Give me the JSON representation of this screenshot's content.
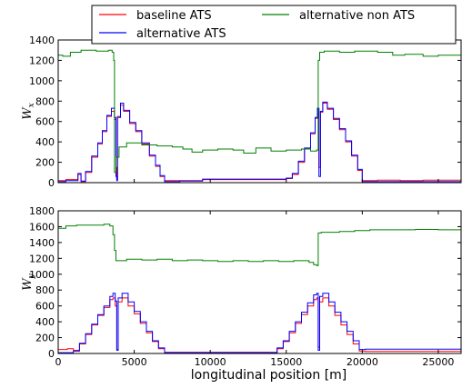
{
  "chart_data": [
    {
      "type": "line",
      "ylabel": "W_x",
      "ylabel_main": "W",
      "ylabel_sub": "x",
      "xlim": [
        0,
        26500
      ],
      "ylim": [
        0,
        1400
      ],
      "yticks": [
        0,
        200,
        400,
        600,
        800,
        1000,
        1200,
        1400
      ],
      "xticks": [
        0,
        5000,
        10000,
        15000,
        20000,
        25000
      ],
      "show_x_tick_labels": false,
      "series": [
        {
          "name": "baseline ATS",
          "color": "#ff0000",
          "stepped": true,
          "x": [
            0,
            500,
            1300,
            1500,
            1800,
            2200,
            2600,
            2900,
            3200,
            3500,
            3700,
            3800,
            3850,
            3900,
            4100,
            4300,
            4700,
            5100,
            5500,
            6000,
            6400,
            6700,
            7000,
            8000,
            9500,
            11000,
            12500,
            14000,
            14500,
            15000,
            15400,
            15800,
            16200,
            16600,
            16900,
            17050,
            17150,
            17250,
            17400,
            17700,
            18100,
            18500,
            18900,
            19300,
            19700,
            20000,
            21000,
            22500,
            24000,
            25500,
            26500
          ],
          "y": [
            20,
            30,
            80,
            10,
            100,
            250,
            380,
            500,
            650,
            700,
            620,
            150,
            30,
            650,
            760,
            700,
            580,
            500,
            380,
            260,
            160,
            60,
            20,
            20,
            30,
            30,
            30,
            30,
            30,
            40,
            80,
            200,
            330,
            480,
            630,
            720,
            150,
            690,
            780,
            720,
            620,
            520,
            400,
            260,
            120,
            20,
            25,
            20,
            25,
            25,
            25
          ]
        },
        {
          "name": "alternative ATS",
          "color": "#0000ff",
          "stepped": true,
          "x": [
            0,
            500,
            1300,
            1500,
            1800,
            2200,
            2600,
            2900,
            3200,
            3500,
            3700,
            3800,
            3850,
            3900,
            4100,
            4300,
            4700,
            5100,
            5500,
            6000,
            6400,
            6700,
            7000,
            8000,
            9500,
            11000,
            12500,
            14000,
            14500,
            15000,
            15400,
            15800,
            16200,
            16600,
            16900,
            17050,
            17150,
            17250,
            17400,
            17700,
            18100,
            18500,
            18900,
            19300,
            19700,
            20000,
            21000,
            22500,
            24000,
            25500,
            26500
          ],
          "y": [
            10,
            20,
            90,
            15,
            110,
            260,
            390,
            510,
            660,
            730,
            640,
            60,
            20,
            640,
            780,
            710,
            590,
            510,
            390,
            270,
            170,
            70,
            10,
            15,
            35,
            35,
            35,
            35,
            35,
            45,
            90,
            210,
            340,
            490,
            640,
            730,
            60,
            700,
            790,
            730,
            630,
            530,
            410,
            270,
            130,
            10,
            10,
            10,
            10,
            10,
            10
          ]
        },
        {
          "name": "alternative non ATS",
          "color": "#008000",
          "stepped": true,
          "x": [
            0,
            300,
            800,
            1500,
            2500,
            3300,
            3550,
            3650,
            3700,
            3800,
            4000,
            4500,
            5500,
            6500,
            7500,
            8200,
            8800,
            9500,
            10500,
            11500,
            12200,
            13000,
            14000,
            15000,
            16000,
            16600,
            17000,
            17100,
            17200,
            17500,
            18500,
            19500,
            21000,
            22000,
            22800,
            24000,
            25000,
            26500
          ],
          "y": [
            1250,
            1240,
            1280,
            1300,
            1290,
            1300,
            1280,
            1200,
            100,
            250,
            350,
            390,
            370,
            360,
            350,
            330,
            300,
            320,
            330,
            320,
            290,
            340,
            310,
            320,
            330,
            310,
            320,
            1200,
            1280,
            1290,
            1280,
            1290,
            1280,
            1250,
            1260,
            1240,
            1250,
            1230
          ]
        }
      ]
    },
    {
      "type": "line",
      "ylabel": "W_y",
      "ylabel_main": "W",
      "ylabel_sub": "y",
      "xlabel": "longitudinal position [m]",
      "xlim": [
        0,
        26500
      ],
      "ylim": [
        0,
        1800
      ],
      "yticks": [
        0,
        200,
        400,
        600,
        800,
        1000,
        1200,
        1400,
        1600,
        1800
      ],
      "xticks": [
        0,
        5000,
        10000,
        15000,
        20000,
        25000
      ],
      "xtick_labels": [
        "0",
        "5000",
        "10000",
        "15000",
        "20000",
        "25000"
      ],
      "show_x_tick_labels": true,
      "series": [
        {
          "name": "baseline ATS",
          "color": "#ff0000",
          "stepped": true,
          "x": [
            0,
            600,
            1000,
            1400,
            1800,
            2200,
            2600,
            3000,
            3400,
            3600,
            3750,
            3850,
            3950,
            4200,
            4600,
            5000,
            5400,
            5800,
            6200,
            6600,
            7000,
            8500,
            10000,
            11500,
            13000,
            14000,
            14400,
            14800,
            15200,
            15600,
            16000,
            16400,
            16800,
            17000,
            17100,
            17200,
            17400,
            17800,
            18200,
            18600,
            19000,
            19400,
            19800,
            20200,
            21000,
            23000,
            26500
          ],
          "y": [
            50,
            60,
            40,
            120,
            240,
            360,
            480,
            580,
            680,
            700,
            600,
            50,
            650,
            700,
            600,
            500,
            380,
            260,
            150,
            60,
            15,
            15,
            15,
            15,
            15,
            15,
            60,
            150,
            260,
            380,
            490,
            600,
            680,
            700,
            80,
            650,
            700,
            600,
            480,
            360,
            240,
            120,
            30,
            25,
            25,
            25,
            25
          ]
        },
        {
          "name": "alternative ATS",
          "color": "#0000ff",
          "stepped": true,
          "x": [
            0,
            600,
            1000,
            1400,
            1800,
            2200,
            2600,
            3000,
            3400,
            3600,
            3750,
            3850,
            3950,
            4200,
            4600,
            5000,
            5400,
            5800,
            6200,
            6600,
            7000,
            8500,
            10000,
            11500,
            13000,
            14000,
            14400,
            14800,
            15200,
            15600,
            16000,
            16400,
            16800,
            17000,
            17100,
            17200,
            17400,
            17800,
            18200,
            18600,
            19000,
            19400,
            19800,
            20200,
            21000,
            23000,
            26500
          ],
          "y": [
            10,
            10,
            30,
            130,
            250,
            370,
            490,
            600,
            720,
            760,
            660,
            40,
            700,
            760,
            650,
            530,
            400,
            280,
            160,
            70,
            10,
            10,
            10,
            10,
            10,
            10,
            70,
            160,
            280,
            400,
            520,
            640,
            740,
            760,
            40,
            720,
            760,
            650,
            520,
            400,
            280,
            160,
            50,
            55,
            55,
            55,
            55
          ]
        },
        {
          "name": "alternative non ATS",
          "color": "#008000",
          "stepped": true,
          "x": [
            0,
            500,
            1200,
            2000,
            3000,
            3400,
            3600,
            3700,
            3800,
            4500,
            5500,
            6500,
            7500,
            8500,
            9500,
            10500,
            11500,
            12500,
            13500,
            14500,
            15500,
            16500,
            16800,
            17000,
            17100,
            17300,
            18500,
            19500,
            20500,
            22000,
            23500,
            25000,
            26500
          ],
          "y": [
            1580,
            1610,
            1620,
            1620,
            1630,
            1610,
            1500,
            1300,
            1170,
            1190,
            1180,
            1190,
            1170,
            1180,
            1170,
            1160,
            1170,
            1160,
            1170,
            1160,
            1170,
            1150,
            1120,
            1110,
            1520,
            1530,
            1540,
            1550,
            1560,
            1560,
            1565,
            1560,
            1570
          ]
        }
      ]
    }
  ]
}
